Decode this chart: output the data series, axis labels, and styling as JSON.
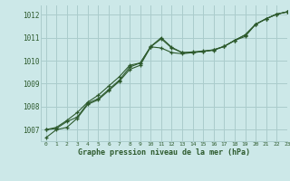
{
  "background_color": "#cce8e8",
  "grid_color": "#aacccc",
  "line_color": "#2d5a2d",
  "title": "Graphe pression niveau de la mer (hPa)",
  "xlim": [
    -0.5,
    23
  ],
  "ylim": [
    1006.5,
    1012.4
  ],
  "yticks": [
    1007,
    1008,
    1009,
    1010,
    1011,
    1012
  ],
  "xticks": [
    0,
    1,
    2,
    3,
    4,
    5,
    6,
    7,
    8,
    9,
    10,
    11,
    12,
    13,
    14,
    15,
    16,
    17,
    18,
    19,
    20,
    21,
    22,
    23
  ],
  "series": {
    "line1": [
      1006.65,
      1007.0,
      1007.1,
      1007.5,
      1008.1,
      1008.3,
      1008.7,
      1009.1,
      1009.62,
      1009.8,
      1010.6,
      1010.55,
      1010.35,
      1010.3,
      1010.35,
      1010.4,
      1010.45,
      1010.62,
      1010.88,
      1011.12,
      1011.58,
      1011.82,
      1012.02,
      1012.12
    ],
    "line2": [
      1007.0,
      1007.1,
      1007.4,
      1007.75,
      1008.2,
      1008.5,
      1008.9,
      1009.3,
      1009.8,
      1009.9,
      1010.6,
      1010.95,
      1010.55,
      1010.35,
      1010.38,
      1010.42,
      1010.47,
      1010.62,
      1010.88,
      1011.12,
      1011.58,
      1011.82,
      1012.02,
      1012.12
    ],
    "line3": [
      1007.0,
      1007.05,
      1007.35,
      1007.55,
      1008.15,
      1008.35,
      1008.75,
      1009.15,
      1009.72,
      1009.9,
      1010.62,
      1011.0,
      1010.58,
      1010.35,
      1010.35,
      1010.4,
      1010.47,
      1010.62,
      1010.88,
      1011.05,
      1011.58,
      1011.82,
      1012.02,
      1012.12
    ]
  }
}
